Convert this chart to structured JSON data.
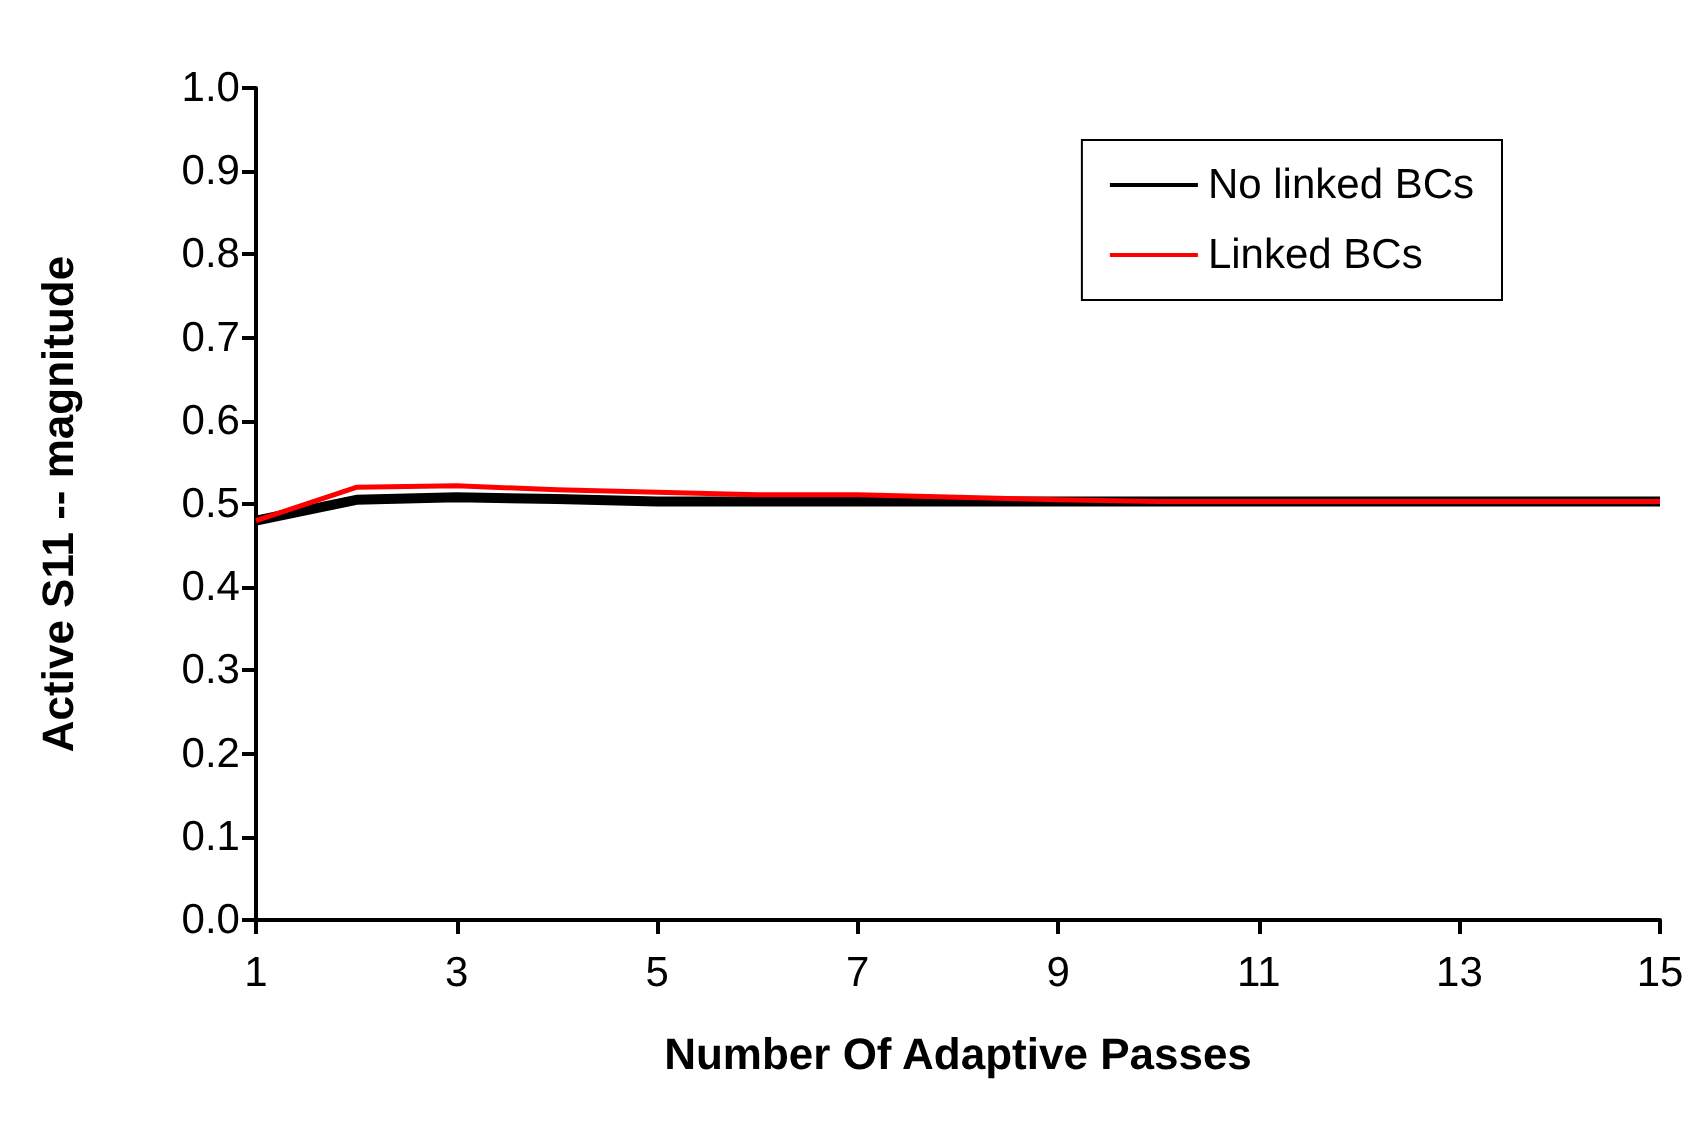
{
  "chart_data": {
    "type": "line",
    "xlabel": "Number Of Adaptive Passes",
    "ylabel": "Active S11 -- magnitude",
    "x": [
      1,
      2,
      3,
      4,
      5,
      6,
      7,
      8,
      9,
      10,
      11,
      12,
      13,
      14,
      15
    ],
    "series": [
      {
        "name": "No linked BCs",
        "color": "#000000",
        "values": [
          0.48,
          0.505,
          0.508,
          0.506,
          0.503,
          0.503,
          0.503,
          0.503,
          0.503,
          0.503,
          0.503,
          0.503,
          0.503,
          0.503,
          0.503
        ]
      },
      {
        "name": "Linked BCs",
        "color": "#ff0000",
        "values": [
          0.48,
          0.52,
          0.522,
          0.517,
          0.514,
          0.511,
          0.511,
          0.508,
          0.505,
          0.503,
          0.503,
          0.503,
          0.503,
          0.503,
          0.503
        ]
      }
    ],
    "xlim": [
      1,
      15
    ],
    "xticks": [
      1,
      3,
      5,
      7,
      9,
      11,
      13,
      15
    ],
    "ylim": [
      0,
      1
    ],
    "yticks": [
      {
        "value": 0,
        "label": "0.0"
      },
      0.1,
      0.2,
      0.3,
      0.4,
      0.5,
      0.6,
      0.7,
      0.8,
      0.9,
      {
        "value": 1,
        "label": "1.0"
      }
    ],
    "grid": false,
    "legend": "top right",
    "marker": "none",
    "line_style": "solid"
  }
}
